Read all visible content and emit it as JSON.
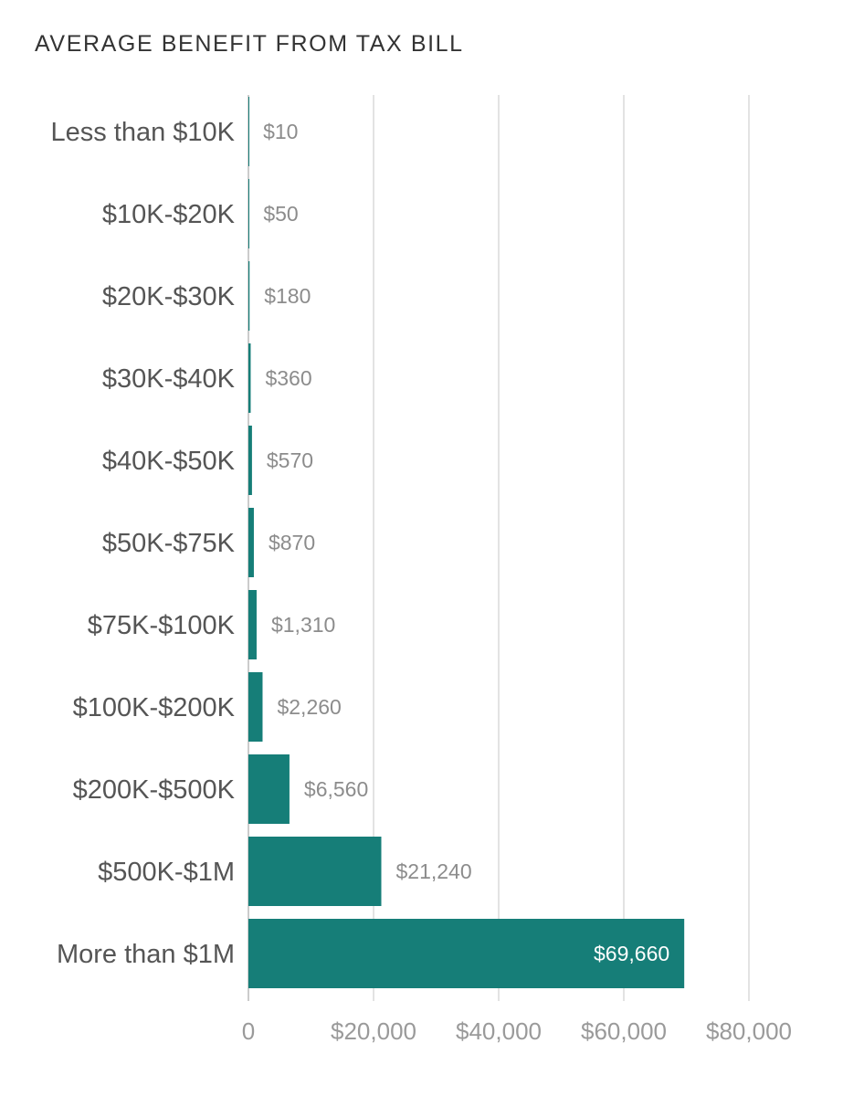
{
  "colors": {
    "bar": "#167e78",
    "grid": "#e3e3e3",
    "axis": "#cccccc"
  },
  "chart_data": {
    "type": "bar",
    "orientation": "horizontal",
    "title": "AVERAGE BENEFIT FROM TAX BILL",
    "xlabel": "",
    "ylabel": "",
    "categories": [
      "Less than $10K",
      "$10K-$20K",
      "$20K-$30K",
      "$30K-$40K",
      "$40K-$50K",
      "$50K-$75K",
      "$75K-$100K",
      "$100K-$200K",
      "$200K-$500K",
      "$500K-$1M",
      "More than $1M"
    ],
    "values": [
      10,
      50,
      180,
      360,
      570,
      870,
      1310,
      2260,
      6560,
      21240,
      69660
    ],
    "value_labels": [
      "$10",
      "$50",
      "$180",
      "$360",
      "$570",
      "$870",
      "$1,310",
      "$2,260",
      "$6,560",
      "$21,240",
      "$69,660"
    ],
    "xlim": [
      0,
      80000
    ],
    "ticks": [
      0,
      20000,
      40000,
      60000,
      80000
    ],
    "tick_labels": [
      "0",
      "$20,000",
      "$40,000",
      "$60,000",
      "$80,000"
    ],
    "grid": true,
    "legend": "none"
  }
}
